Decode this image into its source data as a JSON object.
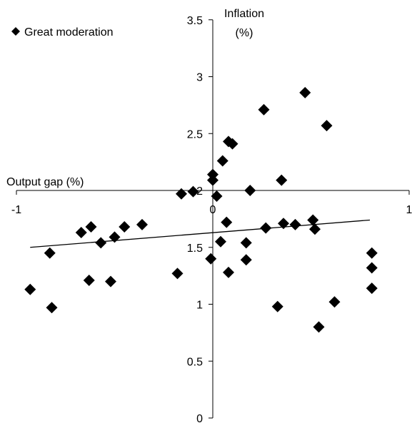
{
  "chart_data": {
    "type": "scatter",
    "title": "",
    "xlabel": "Output gap (%)",
    "ylabel_line1": "Inflation",
    "ylabel_line2": "(%)",
    "xlim": [
      -1,
      1
    ],
    "ylim": [
      0,
      3.5
    ],
    "x_axis_crosses_y_at": 2,
    "x_ticks": [
      "-1",
      "0",
      "1"
    ],
    "y_ticks": [
      "0",
      "0.5",
      "1",
      "1.5",
      "2",
      "2.5",
      "3",
      "3.5"
    ],
    "grid": false,
    "legend_position": "top-left",
    "series": [
      {
        "name": "Great moderation",
        "marker": "diamond",
        "points": [
          [
            -0.93,
            1.13
          ],
          [
            -0.82,
            0.97
          ],
          [
            -0.83,
            1.45
          ],
          [
            -0.67,
            1.63
          ],
          [
            -0.62,
            1.68
          ],
          [
            -0.57,
            1.54
          ],
          [
            -0.63,
            1.21
          ],
          [
            -0.52,
            1.2
          ],
          [
            -0.5,
            1.59
          ],
          [
            -0.45,
            1.68
          ],
          [
            -0.36,
            1.7
          ],
          [
            -0.18,
            1.27
          ],
          [
            -0.16,
            1.97
          ],
          [
            -0.1,
            1.99
          ],
          [
            0.0,
            2.14
          ],
          [
            0.0,
            2.09
          ],
          [
            0.02,
            1.95
          ],
          [
            0.05,
            2.26
          ],
          [
            0.08,
            2.43
          ],
          [
            0.1,
            2.41
          ],
          [
            0.07,
            1.72
          ],
          [
            -0.01,
            1.4
          ],
          [
            0.04,
            1.55
          ],
          [
            0.08,
            1.28
          ],
          [
            0.17,
            1.54
          ],
          [
            0.17,
            1.39
          ],
          [
            0.19,
            2.0
          ],
          [
            0.26,
            2.71
          ],
          [
            0.27,
            1.67
          ],
          [
            0.33,
            0.98
          ],
          [
            0.35,
            2.09
          ],
          [
            0.36,
            1.71
          ],
          [
            0.42,
            1.7
          ],
          [
            0.47,
            2.86
          ],
          [
            0.51,
            1.74
          ],
          [
            0.52,
            1.66
          ],
          [
            0.54,
            0.8
          ],
          [
            0.58,
            2.57
          ],
          [
            0.62,
            1.02
          ],
          [
            0.81,
            1.45
          ],
          [
            0.81,
            1.32
          ],
          [
            0.81,
            1.14
          ]
        ]
      }
    ],
    "trendline": {
      "x": [
        -0.93,
        0.8
      ],
      "y": [
        1.5,
        1.74
      ]
    }
  }
}
